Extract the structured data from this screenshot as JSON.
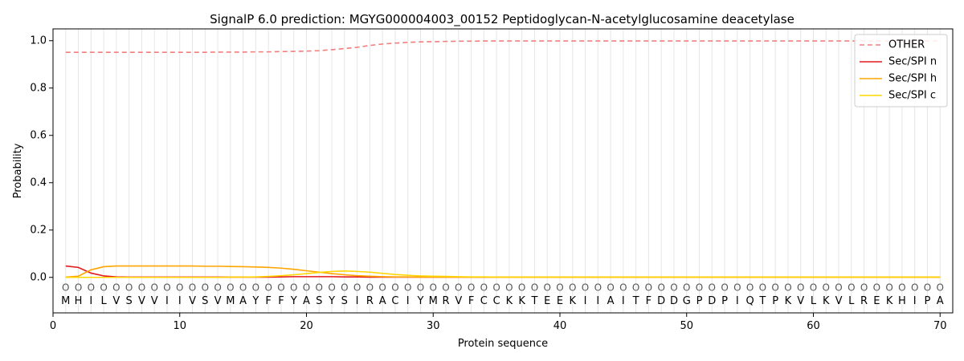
{
  "chart_data": {
    "type": "line",
    "title": "SignalP 6.0 prediction: MGYG000004003_00152 Peptidoglycan-N-acetylglucosamine deacetylase",
    "xlabel": "Protein sequence",
    "ylabel": "Probability",
    "xlim": [
      0,
      71
    ],
    "ylim": [
      -0.15,
      1.05
    ],
    "x_ticks": [
      0,
      10,
      20,
      30,
      40,
      50,
      60,
      70
    ],
    "y_ticks": [
      0.0,
      0.2,
      0.4,
      0.6,
      0.8,
      1.0
    ],
    "x_tick_labels": [
      "0",
      "10",
      "20",
      "30",
      "40",
      "50",
      "60",
      "70"
    ],
    "y_tick_labels": [
      "0.0",
      "0.2",
      "0.4",
      "0.6",
      "0.8",
      "1.0"
    ],
    "legend_position": "top-right",
    "sequence": [
      "M",
      "H",
      "I",
      "L",
      "V",
      "S",
      "V",
      "V",
      "I",
      "I",
      "V",
      "S",
      "V",
      "M",
      "A",
      "Y",
      "F",
      "F",
      "Y",
      "A",
      "S",
      "Y",
      "S",
      "I",
      "R",
      "A",
      "C",
      "I",
      "Y",
      "M",
      "R",
      "V",
      "F",
      "C",
      "C",
      "K",
      "K",
      "T",
      "E",
      "E",
      "K",
      "I",
      "I",
      "A",
      "I",
      "T",
      "F",
      "D",
      "D",
      "G",
      "P",
      "D",
      "P",
      "I",
      "Q",
      "T",
      "P",
      "K",
      "V",
      "L",
      "K",
      "V",
      "L",
      "R",
      "E",
      "K",
      "H",
      "I",
      "P",
      "A"
    ],
    "region_label": "O",
    "series": [
      {
        "name": "OTHER",
        "color": "#f08080",
        "dash": true,
        "values": [
          0.951,
          0.951,
          0.951,
          0.951,
          0.951,
          0.951,
          0.951,
          0.951,
          0.951,
          0.951,
          0.951,
          0.951,
          0.952,
          0.952,
          0.952,
          0.953,
          0.953,
          0.954,
          0.955,
          0.956,
          0.958,
          0.962,
          0.967,
          0.972,
          0.98,
          0.986,
          0.99,
          0.993,
          0.995,
          0.996,
          0.997,
          0.998,
          0.998,
          0.999,
          0.999,
          0.999,
          0.999,
          0.999,
          0.999,
          0.999,
          0.999,
          0.999,
          0.999,
          0.999,
          0.999,
          0.999,
          0.999,
          0.999,
          0.999,
          0.999,
          0.999,
          0.999,
          0.999,
          0.999,
          0.999,
          0.999,
          0.999,
          0.999,
          0.999,
          0.999,
          0.999,
          0.999,
          0.999,
          0.999,
          0.999,
          0.999,
          0.999,
          0.999,
          0.999,
          0.999
        ]
      },
      {
        "name": "Sec/SPI n",
        "color": "#e31a1c",
        "dash": false,
        "values": [
          0.048,
          0.042,
          0.018,
          0.006,
          0.002,
          0.001,
          0.001,
          0.001,
          0.001,
          0.001,
          0.001,
          0.001,
          0.001,
          0.001,
          0.001,
          0.001,
          0.001,
          0.002,
          0.003,
          0.003,
          0.003,
          0.003,
          0.002,
          0.002,
          0.001,
          0.001,
          0.001,
          0.001,
          0.001,
          0.001,
          0.001,
          0.001,
          0.001,
          0.001,
          0.001,
          0.001,
          0.001,
          0.001,
          0.001,
          0.001,
          0.001,
          0.001,
          0.001,
          0.001,
          0.001,
          0.001,
          0.001,
          0.001,
          0.001,
          0.001,
          0.001,
          0.001,
          0.001,
          0.001,
          0.001,
          0.001,
          0.001,
          0.001,
          0.001,
          0.001,
          0.001,
          0.001,
          0.001,
          0.001,
          0.001,
          0.001,
          0.001,
          0.001,
          0.001,
          0.001
        ]
      },
      {
        "name": "Sec/SPI h",
        "color": "#ffa500",
        "dash": false,
        "values": [
          0.001,
          0.005,
          0.032,
          0.045,
          0.048,
          0.048,
          0.048,
          0.048,
          0.048,
          0.048,
          0.048,
          0.047,
          0.047,
          0.046,
          0.045,
          0.044,
          0.042,
          0.039,
          0.034,
          0.028,
          0.022,
          0.016,
          0.011,
          0.007,
          0.005,
          0.003,
          0.002,
          0.002,
          0.001,
          0.001,
          0.001,
          0.001,
          0.001,
          0.001,
          0.001,
          0.001,
          0.001,
          0.001,
          0.001,
          0.001,
          0.001,
          0.001,
          0.001,
          0.001,
          0.001,
          0.001,
          0.001,
          0.001,
          0.001,
          0.001,
          0.001,
          0.001,
          0.001,
          0.001,
          0.001,
          0.001,
          0.001,
          0.001,
          0.001,
          0.001,
          0.001,
          0.001,
          0.001,
          0.001,
          0.001,
          0.001,
          0.001,
          0.001,
          0.001,
          0.001
        ]
      },
      {
        "name": "Sec/SPI c",
        "color": "#ffd700",
        "dash": false,
        "values": [
          0.0,
          0.0,
          0.0,
          0.0,
          0.0,
          0.0,
          0.0,
          0.0,
          0.0,
          0.0,
          0.0,
          0.0,
          0.0,
          0.001,
          0.001,
          0.002,
          0.004,
          0.007,
          0.011,
          0.016,
          0.021,
          0.025,
          0.027,
          0.025,
          0.022,
          0.017,
          0.012,
          0.009,
          0.006,
          0.005,
          0.004,
          0.003,
          0.002,
          0.002,
          0.001,
          0.001,
          0.001,
          0.001,
          0.001,
          0.001,
          0.001,
          0.001,
          0.001,
          0.001,
          0.001,
          0.001,
          0.001,
          0.001,
          0.001,
          0.001,
          0.001,
          0.001,
          0.001,
          0.001,
          0.001,
          0.001,
          0.001,
          0.001,
          0.001,
          0.001,
          0.001,
          0.001,
          0.001,
          0.001,
          0.001,
          0.001,
          0.001,
          0.001,
          0.001,
          0.001
        ]
      }
    ]
  }
}
